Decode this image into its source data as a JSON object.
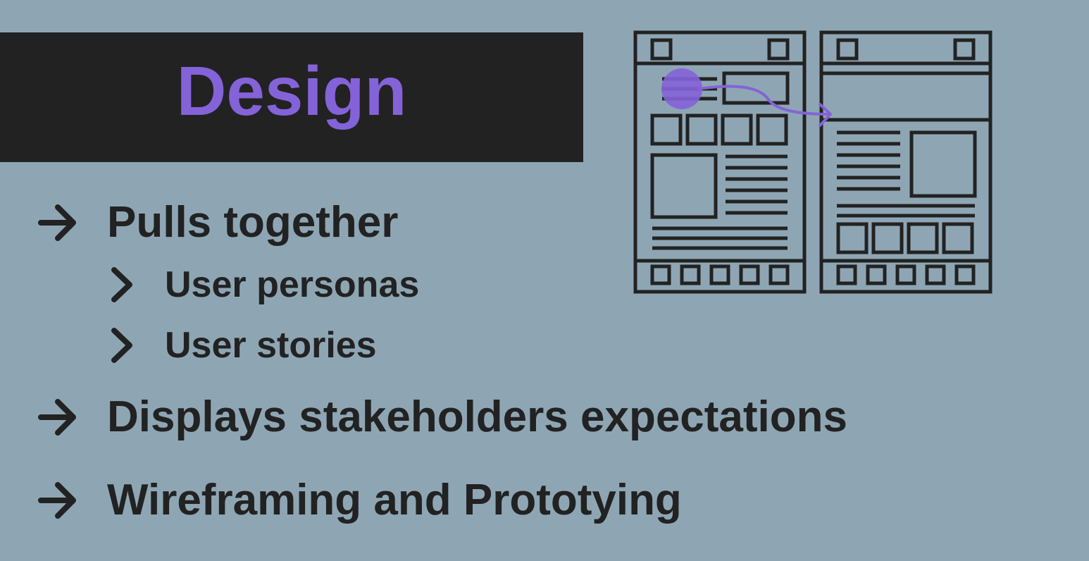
{
  "colors": {
    "background": "#8ea6b4",
    "title_band": "#222222",
    "accent": "#8463d8",
    "text": "#222222"
  },
  "header": {
    "title": "Design"
  },
  "items": [
    {
      "label": "Pulls together",
      "icon": "arrow-right-icon",
      "children": [
        {
          "label": "User personas",
          "icon": "chevron-right-icon"
        },
        {
          "label": "User stories",
          "icon": "chevron-right-icon"
        }
      ]
    },
    {
      "label": "Displays stakeholders expectations",
      "icon": "arrow-right-icon"
    },
    {
      "label": "Wireframing and Prototying",
      "icon": "arrow-right-icon"
    }
  ],
  "illustration": {
    "icon": "wireframe-flow-illustration"
  }
}
